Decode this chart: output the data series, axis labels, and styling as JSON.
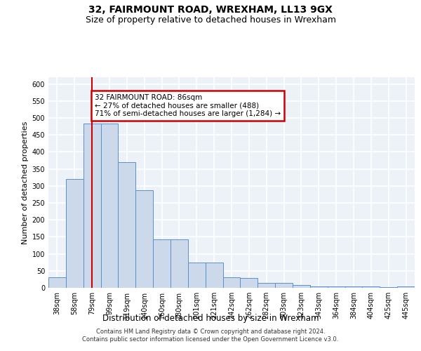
{
  "title": "32, FAIRMOUNT ROAD, WREXHAM, LL13 9GX",
  "subtitle": "Size of property relative to detached houses in Wrexham",
  "xlabel": "Distribution of detached houses by size in Wrexham",
  "ylabel": "Number of detached properties",
  "categories": [
    "38sqm",
    "58sqm",
    "79sqm",
    "99sqm",
    "119sqm",
    "140sqm",
    "160sqm",
    "180sqm",
    "201sqm",
    "221sqm",
    "242sqm",
    "262sqm",
    "282sqm",
    "303sqm",
    "323sqm",
    "343sqm",
    "364sqm",
    "384sqm",
    "404sqm",
    "425sqm",
    "445sqm"
  ],
  "values": [
    30,
    320,
    483,
    483,
    370,
    287,
    143,
    143,
    75,
    75,
    30,
    28,
    15,
    15,
    8,
    4,
    4,
    4,
    4,
    3,
    5
  ],
  "bar_color": "#ccd9ea",
  "bar_edge_color": "#5b8fc9",
  "annotation_text": "32 FAIRMOUNT ROAD: 86sqm\n← 27% of detached houses are smaller (488)\n71% of semi-detached houses are larger (1,284) →",
  "annotation_box_color": "#ffffff",
  "annotation_box_edge": "#cc0000",
  "vline_color": "#cc0000",
  "vline_x_index": 2.0,
  "footer": "Contains HM Land Registry data © Crown copyright and database right 2024.\nContains public sector information licensed under the Open Government Licence v3.0.",
  "ylim": [
    0,
    620
  ],
  "yticks": [
    0,
    50,
    100,
    150,
    200,
    250,
    300,
    350,
    400,
    450,
    500,
    550,
    600
  ],
  "background_color": "#edf2f9",
  "grid_color": "#ffffff",
  "title_fontsize": 10,
  "subtitle_fontsize": 9,
  "tick_fontsize": 7,
  "ylabel_fontsize": 8,
  "xlabel_fontsize": 8.5,
  "footer_fontsize": 6
}
